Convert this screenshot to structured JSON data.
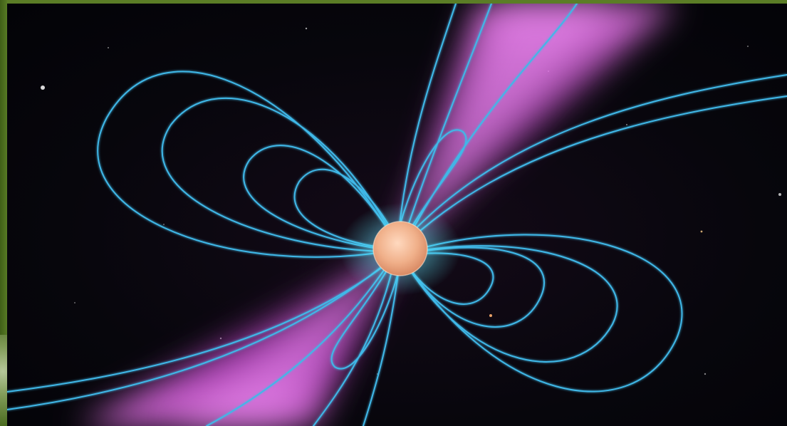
{
  "image": {
    "subject": "pulsar-illustration",
    "colors": {
      "background": "#05060a",
      "beam": "#e05ae8",
      "field_lines": "#3fb8e8",
      "field_core": "#5ff2ff",
      "star": "#f0b08a",
      "frame": "#4a6b1f"
    }
  }
}
